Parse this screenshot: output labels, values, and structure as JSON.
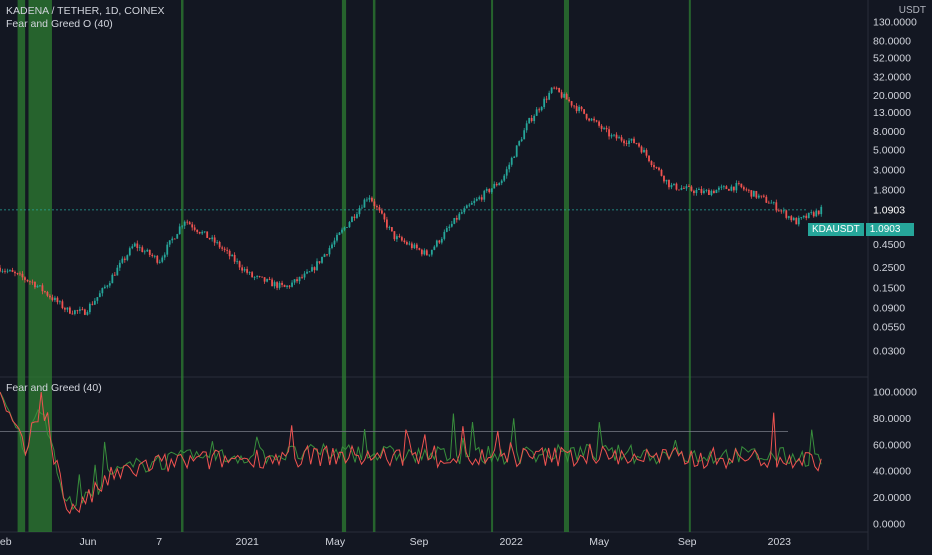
{
  "legend": {
    "title": "KADENA / TETHER, 1D, COINEX",
    "indicator_top": "Fear and Greed O (40)",
    "indicator_bottom": "Fear and Greed (40)"
  },
  "currency": "USDT",
  "price_badge": {
    "symbol": "KDAUSDT",
    "value": "1.0903"
  },
  "colors": {
    "background": "#131722",
    "up": "#26a69a",
    "down": "#ef5350",
    "highlight": "#2e7d32",
    "text": "#d1d4dc"
  },
  "chart_data": [
    {
      "type": "candlestick",
      "title": "KADENA / TETHER, 1D, COINEX",
      "y_scale": "log",
      "y_ticks": [
        "130.0000",
        "80.0000",
        "52.0000",
        "32.0000",
        "20.0000",
        "13.0000",
        "8.0000",
        "5.0000",
        "3.0000",
        "1.8000",
        "1.0903",
        "0.7000",
        "0.4500",
        "0.2500",
        "0.1500",
        "0.0900",
        "0.0550",
        "0.0300"
      ],
      "x_ticks": [
        "Feb",
        "Jun",
        "7",
        "2021",
        "May",
        "Sep",
        "2022",
        "May",
        "Sep",
        "2023"
      ],
      "trend": [
        {
          "t": 0,
          "p": 0.25
        },
        {
          "t": 4,
          "p": 0.17
        },
        {
          "t": 8,
          "p": 0.085
        },
        {
          "t": 10,
          "p": 0.08
        },
        {
          "t": 12,
          "p": 0.13
        },
        {
          "t": 16,
          "p": 0.45
        },
        {
          "t": 19,
          "p": 0.3
        },
        {
          "t": 22,
          "p": 0.85
        },
        {
          "t": 26,
          "p": 0.45
        },
        {
          "t": 30,
          "p": 0.2
        },
        {
          "t": 34,
          "p": 0.15
        },
        {
          "t": 37,
          "p": 0.22
        },
        {
          "t": 40,
          "p": 0.5
        },
        {
          "t": 44,
          "p": 1.6
        },
        {
          "t": 47,
          "p": 0.55
        },
        {
          "t": 51,
          "p": 0.35
        },
        {
          "t": 55,
          "p": 1.0
        },
        {
          "t": 60,
          "p": 2.4
        },
        {
          "t": 63,
          "p": 10.0
        },
        {
          "t": 66,
          "p": 24.0
        },
        {
          "t": 70,
          "p": 12.0
        },
        {
          "t": 73,
          "p": 7.0
        },
        {
          "t": 76,
          "p": 6.0
        },
        {
          "t": 80,
          "p": 2.0
        },
        {
          "t": 84,
          "p": 1.7
        },
        {
          "t": 88,
          "p": 2.0
        },
        {
          "t": 92,
          "p": 1.3
        },
        {
          "t": 95,
          "p": 0.8
        },
        {
          "t": 98,
          "p": 1.09
        }
      ],
      "last_price": 1.0903
    },
    {
      "type": "line",
      "title": "Fear and Greed (40)",
      "y_ticks": [
        "100.0000",
        "80.0000",
        "60.0000",
        "40.0000",
        "20.0000",
        "0.0000"
      ],
      "reference_line": 70,
      "trend": [
        {
          "t": 0,
          "v": 95
        },
        {
          "t": 3,
          "v": 55
        },
        {
          "t": 5,
          "v": 90
        },
        {
          "t": 8,
          "v": 12
        },
        {
          "t": 10,
          "v": 15
        },
        {
          "t": 13,
          "v": 35
        },
        {
          "t": 18,
          "v": 45
        },
        {
          "t": 24,
          "v": 48
        },
        {
          "t": 30,
          "v": 50
        },
        {
          "t": 40,
          "v": 52
        },
        {
          "t": 50,
          "v": 50
        },
        {
          "t": 60,
          "v": 50
        },
        {
          "t": 70,
          "v": 52
        },
        {
          "t": 80,
          "v": 50
        },
        {
          "t": 90,
          "v": 50
        },
        {
          "t": 98,
          "v": 48
        }
      ]
    }
  ],
  "highlight_bands": [
    {
      "start": 2.1,
      "end": 3.0
    },
    {
      "start": 3.4,
      "end": 6.2
    },
    {
      "start": 21.6,
      "end": 21.9
    },
    {
      "start": 40.8,
      "end": 41.3
    },
    {
      "start": 44.5,
      "end": 44.8
    },
    {
      "start": 58.6,
      "end": 58.8
    },
    {
      "start": 67.3,
      "end": 67.9
    },
    {
      "start": 82.2,
      "end": 82.4
    }
  ]
}
